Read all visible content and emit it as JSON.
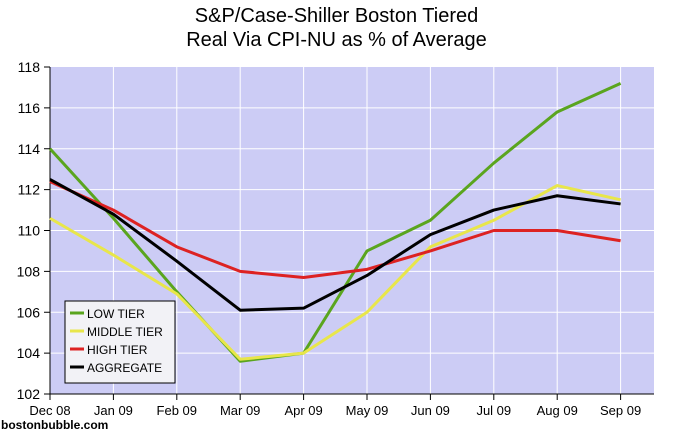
{
  "chart_data": {
    "type": "line",
    "title": "S&P/Case-Shiller Boston Tiered",
    "subtitle": "Real Via CPI-NU as % of Average",
    "xlabel": "",
    "ylabel": "",
    "categories": [
      "Dec 08",
      "Jan 09",
      "Feb 09",
      "Mar 09",
      "Apr 09",
      "May 09",
      "Jun 09",
      "Jul 09",
      "Aug 09",
      "Sep 09"
    ],
    "ylim": [
      102,
      118
    ],
    "yticks": [
      102,
      104,
      106,
      108,
      110,
      112,
      114,
      116,
      118
    ],
    "grid": true,
    "legend_position": "bottom-left",
    "background": "#ccccf5",
    "series": [
      {
        "name": "LOW TIER",
        "color": "#5aa51e",
        "values": [
          114.0,
          110.6,
          107.0,
          103.6,
          104.0,
          109.0,
          110.5,
          113.3,
          115.8,
          117.2
        ]
      },
      {
        "name": "MIDDLE TIER",
        "color": "#e8e64a",
        "values": [
          110.6,
          108.8,
          106.9,
          103.7,
          104.0,
          106.0,
          109.2,
          110.5,
          112.2,
          111.5
        ]
      },
      {
        "name": "HIGH TIER",
        "color": "#dd2222",
        "values": [
          112.4,
          111.0,
          109.2,
          108.0,
          107.7,
          108.1,
          109.0,
          110.0,
          110.0,
          109.5
        ]
      },
      {
        "name": "AGGREGATE",
        "color": "#000000",
        "values": [
          112.5,
          110.8,
          108.5,
          106.1,
          106.2,
          107.8,
          109.8,
          111.0,
          111.7,
          111.3
        ]
      }
    ]
  },
  "source": "bostonbubble.com"
}
